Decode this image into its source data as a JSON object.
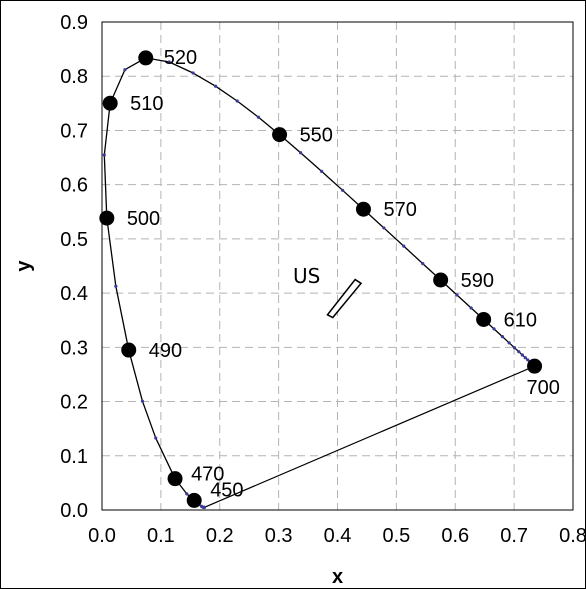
{
  "chart_data": {
    "type": "scatter",
    "xlabel": "x",
    "ylabel": "y",
    "xlim": [
      0.0,
      0.8
    ],
    "ylim": [
      0.0,
      0.9
    ],
    "xticks": [
      "0.0",
      "0.1",
      "0.2",
      "0.3",
      "0.4",
      "0.5",
      "0.6",
      "0.7",
      "0.8"
    ],
    "yticks": [
      "0.0",
      "0.1",
      "0.2",
      "0.3",
      "0.4",
      "0.5",
      "0.6",
      "0.7",
      "0.8",
      "0.9"
    ],
    "grid": true,
    "spectral_locus": [
      [
        0.1741,
        0.005
      ],
      [
        0.1738,
        0.0049
      ],
      [
        0.1733,
        0.0048
      ],
      [
        0.1726,
        0.0048
      ],
      [
        0.1714,
        0.0051
      ],
      [
        0.1689,
        0.0069
      ],
      [
        0.1644,
        0.0109
      ],
      [
        0.1566,
        0.0177
      ],
      [
        0.144,
        0.0297
      ],
      [
        0.1241,
        0.0578
      ],
      [
        0.0913,
        0.1327
      ],
      [
        0.0687,
        0.2007
      ],
      [
        0.0454,
        0.295
      ],
      [
        0.0235,
        0.4127
      ],
      [
        0.0082,
        0.5384
      ],
      [
        0.0039,
        0.6548
      ],
      [
        0.0139,
        0.7502
      ],
      [
        0.0389,
        0.812
      ],
      [
        0.0743,
        0.8338
      ],
      [
        0.1142,
        0.8262
      ],
      [
        0.1547,
        0.8059
      ],
      [
        0.1929,
        0.7816
      ],
      [
        0.2296,
        0.7543
      ],
      [
        0.2658,
        0.7243
      ],
      [
        0.3016,
        0.6923
      ],
      [
        0.3373,
        0.6589
      ],
      [
        0.3731,
        0.6245
      ],
      [
        0.4087,
        0.5896
      ],
      [
        0.4441,
        0.5547
      ],
      [
        0.4788,
        0.5202
      ],
      [
        0.5125,
        0.4866
      ],
      [
        0.5448,
        0.4544
      ],
      [
        0.5752,
        0.4242
      ],
      [
        0.6029,
        0.3965
      ],
      [
        0.627,
        0.3725
      ],
      [
        0.6482,
        0.3514
      ],
      [
        0.6658,
        0.334
      ],
      [
        0.6801,
        0.3197
      ],
      [
        0.6915,
        0.3083
      ],
      [
        0.7006,
        0.2993
      ],
      [
        0.7079,
        0.292
      ],
      [
        0.714,
        0.2859
      ],
      [
        0.719,
        0.2809
      ],
      [
        0.723,
        0.277
      ],
      [
        0.726,
        0.274
      ],
      [
        0.7283,
        0.2717
      ],
      [
        0.73,
        0.27
      ],
      [
        0.7347,
        0.2653
      ]
    ],
    "purple_line": [
      [
        0.7347,
        0.2653
      ],
      [
        0.1741,
        0.005
      ]
    ],
    "labeled_wavelengths": [
      {
        "label": "450",
        "x": 0.1566,
        "y": 0.0177
      },
      {
        "label": "470",
        "x": 0.1241,
        "y": 0.0578
      },
      {
        "label": "490",
        "x": 0.0454,
        "y": 0.295
      },
      {
        "label": "500",
        "x": 0.0082,
        "y": 0.5384
      },
      {
        "label": "510",
        "x": 0.0139,
        "y": 0.7502
      },
      {
        "label": "520",
        "x": 0.0743,
        "y": 0.8338
      },
      {
        "label": "550",
        "x": 0.3016,
        "y": 0.6923
      },
      {
        "label": "570",
        "x": 0.4441,
        "y": 0.5547
      },
      {
        "label": "590",
        "x": 0.5752,
        "y": 0.4242
      },
      {
        "label": "610",
        "x": 0.6482,
        "y": 0.3514
      },
      {
        "label": "700",
        "x": 0.7347,
        "y": 0.2653
      }
    ],
    "annotation": {
      "text": "US",
      "region": [
        [
          0.383,
          0.36
        ],
        [
          0.392,
          0.355
        ],
        [
          0.44,
          0.418
        ],
        [
          0.43,
          0.425
        ]
      ]
    },
    "colors": {
      "locus": "#000000",
      "minor_dots": "#3a3a9a",
      "grid": "#b4b4b4"
    }
  }
}
